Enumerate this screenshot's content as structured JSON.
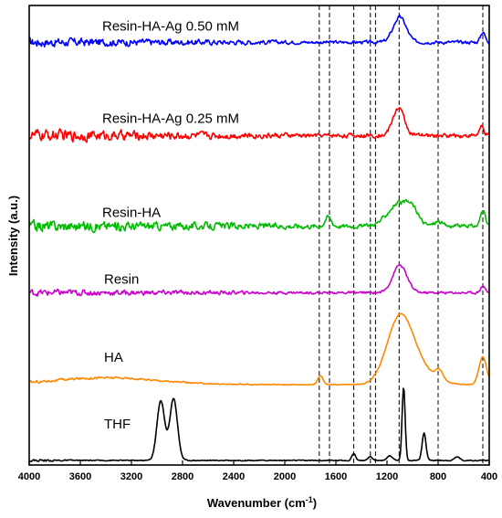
{
  "chart_data": {
    "type": "line",
    "xlabel": "Wavenumber (cm",
    "xlabel_sup": "-1",
    "xlabel_end": ")",
    "ylabel": "Intensity (a.u.)",
    "xlim": [
      4000,
      400
    ],
    "x_reversed": true,
    "ticks": [
      4000,
      3600,
      3200,
      2800,
      2400,
      2000,
      1600,
      1200,
      800,
      400
    ],
    "tick_labels": [
      "4000",
      "3600",
      "3200",
      "2800",
      "2400",
      "2000",
      "1600",
      "1200",
      "800",
      "400"
    ],
    "reference_lines": [
      1730,
      1650,
      1460,
      1330,
      1290,
      1105,
      800,
      450
    ],
    "series": [
      {
        "name": "Resin-HA-Ag 0.50 mM",
        "color": "#0000ff",
        "baseline": 0.92,
        "noise": 0.014,
        "noise_decay_to": 1800,
        "peaks": [
          [
            1100,
            0.055,
            50
          ],
          [
            450,
            0.022,
            18
          ]
        ]
      },
      {
        "name": "Resin-HA-Ag 0.25 mM",
        "color": "#ff0000",
        "baseline": 0.717,
        "noise": 0.018,
        "noise_decay_to": 1800,
        "peaks": [
          [
            1110,
            0.06,
            45
          ],
          [
            460,
            0.018,
            18
          ]
        ]
      },
      {
        "name": "Resin-HA",
        "color": "#00bb00",
        "baseline": 0.52,
        "noise": 0.017,
        "noise_decay_to": 1500,
        "peaks": [
          [
            1660,
            0.02,
            25
          ],
          [
            1100,
            0.05,
            90
          ],
          [
            1000,
            0.02,
            40
          ],
          [
            800,
            0.01,
            30
          ],
          [
            450,
            0.035,
            18
          ]
        ]
      },
      {
        "name": "Resin",
        "color": "#cc00cc",
        "baseline": 0.375,
        "noise": 0.01,
        "noise_decay_to": 1800,
        "peaks": [
          [
            1100,
            0.06,
            55
          ],
          [
            450,
            0.015,
            18
          ]
        ]
      },
      {
        "name": "HA",
        "color": "#ff8800",
        "baseline": 0.175,
        "noise": 0.004,
        "noise_decay_to": 2400,
        "peaks": [
          [
            3400,
            0.015,
            400
          ],
          [
            1720,
            0.02,
            20
          ],
          [
            1100,
            0.14,
            100
          ],
          [
            950,
            0.03,
            120
          ],
          [
            790,
            0.02,
            30
          ],
          [
            450,
            0.06,
            30
          ]
        ]
      },
      {
        "name": "THF",
        "color": "#000000",
        "baseline": 0.01,
        "noise": 0.004,
        "noise_decay_to": 3600,
        "peaks": [
          [
            2970,
            0.13,
            30
          ],
          [
            2870,
            0.135,
            30
          ],
          [
            1460,
            0.015,
            15
          ],
          [
            1330,
            0.008,
            15
          ],
          [
            1180,
            0.01,
            20
          ],
          [
            1070,
            0.16,
            12
          ],
          [
            910,
            0.06,
            15
          ],
          [
            650,
            0.008,
            20
          ]
        ]
      }
    ]
  }
}
